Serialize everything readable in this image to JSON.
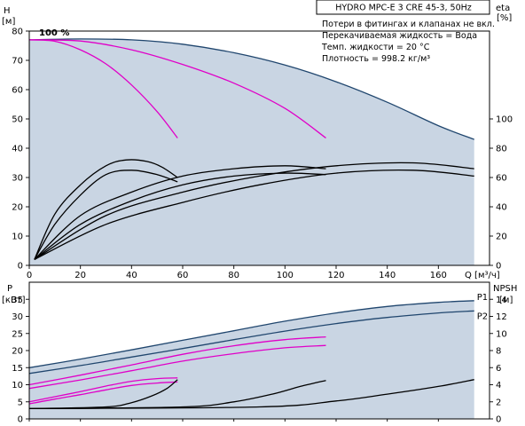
{
  "chart_data": [
    {
      "type": "line",
      "name_box": "HYDRO MPC-E 3 CRE 45-3, 50Hz",
      "title_lines": [
        "Потери в фитингах и клапанах не вкл.",
        "Перекачиваемая жидкость = Вода",
        "Темп. жидкости = 20 °C",
        "Плотность = 998.2 кг/м³"
      ],
      "xlabel": "Q [м³/ч]",
      "ylabel_left": "H [м]",
      "ylabel_right": "eta [%]",
      "xlim": [
        0,
        180
      ],
      "ylim_left": [
        0,
        80
      ],
      "ylim_right": [
        0,
        160
      ],
      "x_ticks": [
        0,
        20,
        40,
        60,
        80,
        100,
        120,
        140,
        160
      ],
      "y_ticks_left": [
        0,
        10,
        20,
        30,
        40,
        50,
        60,
        70,
        80
      ],
      "y_ticks_right": [
        0,
        20,
        40,
        60,
        80,
        100
      ],
      "annotation": "100 %",
      "colors": {
        "envelope": "#c9d5e3",
        "head_max": "#20466e",
        "head_reduced": "#e000c8",
        "eta": "#000000"
      },
      "envelope_upper": {
        "x": [
          0,
          5,
          20,
          40,
          60,
          80,
          100,
          120,
          140,
          160,
          174
        ],
        "y": [
          77,
          77.3,
          77.3,
          77,
          75.5,
          72.6,
          68.4,
          62.7,
          55.7,
          47.7,
          43
        ]
      },
      "envelope_lower": {
        "x": [
          174,
          140,
          120,
          100,
          80,
          60,
          45,
          30,
          15,
          5,
          0
        ],
        "y": [
          0,
          0,
          0,
          0,
          0,
          0,
          0,
          0,
          0,
          0,
          0
        ]
      },
      "series": [
        {
          "role": "head_max",
          "x": [
            0,
            20,
            40,
            60,
            80,
            100,
            120,
            140,
            160,
            174
          ],
          "y": [
            77,
            77.3,
            77,
            75.5,
            72.6,
            68.4,
            62.7,
            55.7,
            47.7,
            43
          ]
        },
        {
          "role": "head_reduced",
          "x": [
            0,
            10,
            20,
            30,
            40,
            50,
            58
          ],
          "y": [
            77,
            76.5,
            73.6,
            68.8,
            61.6,
            52.5,
            43.5
          ]
        },
        {
          "role": "head_reduced",
          "x": [
            0,
            20,
            40,
            60,
            80,
            100,
            116
          ],
          "y": [
            77,
            76.6,
            73.6,
            68.6,
            62.2,
            53.6,
            43.5
          ]
        },
        {
          "role": "eta",
          "x": [
            2,
            10,
            20,
            30,
            40,
            50,
            58
          ],
          "y_right": [
            4,
            28,
            48,
            62,
            65,
            62,
            57
          ]
        },
        {
          "role": "eta",
          "x": [
            2,
            10,
            20,
            30,
            38,
            46,
            52,
            58
          ],
          "y_right": [
            4,
            35,
            55,
            68,
            72,
            71,
            67,
            60
          ]
        },
        {
          "role": "eta",
          "x": [
            2,
            20,
            40,
            60,
            80,
            100,
            116
          ],
          "y_right": [
            4,
            28,
            44,
            55,
            61,
            63,
            62
          ]
        },
        {
          "role": "eta",
          "x": [
            2,
            20,
            40,
            60,
            80,
            100,
            116
          ],
          "y_right": [
            4,
            34,
            50,
            61,
            66,
            68,
            66
          ]
        },
        {
          "role": "eta",
          "x": [
            2,
            30,
            60,
            90,
            120,
            150,
            174
          ],
          "y_right": [
            4,
            28,
            43,
            55,
            63,
            65,
            61
          ]
        },
        {
          "role": "eta",
          "x": [
            2,
            30,
            60,
            90,
            120,
            150,
            174
          ],
          "y_right": [
            4,
            34,
            50,
            61,
            68,
            70,
            66
          ]
        }
      ]
    },
    {
      "type": "line",
      "ylabel_left": "P [кВт]",
      "ylabel_right": "NPSH [м]",
      "xlim": [
        0,
        180
      ],
      "ylim_left": [
        0,
        40
      ],
      "ylim_right": [
        0,
        16
      ],
      "y_ticks_left": [
        0,
        5,
        10,
        15,
        20,
        25,
        30,
        35
      ],
      "y_ticks_right": [
        0,
        2,
        4,
        6,
        8,
        10,
        12,
        14
      ],
      "curve_labels": [
        "P1",
        "P2"
      ],
      "colors": {
        "envelope": "#c9d5e3",
        "power_max": "#20466e",
        "power_reduced": "#e000c8",
        "npsh": "#000000"
      },
      "envelope_upper": {
        "x": [
          0,
          20,
          40,
          60,
          80,
          100,
          120,
          140,
          160,
          174
        ],
        "y": [
          15,
          17.5,
          20.2,
          23,
          25.8,
          28.6,
          31,
          32.9,
          34.1,
          34.6
        ]
      },
      "envelope_lower": {
        "x": [
          174,
          120,
          90,
          60,
          30,
          0
        ],
        "y": [
          0,
          0,
          0,
          0,
          0,
          0
        ]
      },
      "series": [
        {
          "role": "power_max",
          "name": "P1",
          "x": [
            0,
            20,
            40,
            60,
            80,
            100,
            120,
            140,
            160,
            174
          ],
          "y": [
            15,
            17.5,
            20.2,
            23,
            25.8,
            28.6,
            31,
            32.9,
            34.1,
            34.6
          ]
        },
        {
          "role": "power_max",
          "name": "P2",
          "x": [
            0,
            20,
            40,
            60,
            80,
            100,
            120,
            140,
            160,
            174
          ],
          "y": [
            13.3,
            15.6,
            18.1,
            20.6,
            23.2,
            25.7,
            27.9,
            29.7,
            31,
            31.6
          ]
        },
        {
          "role": "power_reduced",
          "x": [
            0,
            20,
            40,
            60,
            80,
            100,
            116
          ],
          "y": [
            10,
            12.8,
            15.8,
            18.9,
            21.4,
            23.2,
            24
          ]
        },
        {
          "role": "power_reduced",
          "x": [
            0,
            20,
            40,
            60,
            80,
            100,
            116
          ],
          "y": [
            8.9,
            11.4,
            14.1,
            16.9,
            19.1,
            20.8,
            21.5
          ]
        },
        {
          "role": "power_reduced",
          "x": [
            0,
            10,
            20,
            30,
            40,
            50,
            58
          ],
          "y": [
            5,
            6.5,
            8,
            9.6,
            11,
            11.8,
            12
          ]
        },
        {
          "role": "power_reduced",
          "x": [
            0,
            10,
            20,
            30,
            40,
            50,
            58
          ],
          "y": [
            4.4,
            5.8,
            7.1,
            8.5,
            9.8,
            10.5,
            10.8
          ]
        },
        {
          "role": "npsh",
          "x": [
            0,
            30,
            40,
            48,
            54,
            58
          ],
          "y_right": [
            1.2,
            1.4,
            1.9,
            2.7,
            3.6,
            4.6
          ]
        },
        {
          "role": "npsh",
          "x": [
            0,
            60,
            80,
            95,
            106,
            116
          ],
          "y_right": [
            1.2,
            1.4,
            2.0,
            2.9,
            3.8,
            4.5
          ]
        },
        {
          "role": "npsh",
          "x": [
            0,
            90,
            120,
            140,
            160,
            174
          ],
          "y_right": [
            1.2,
            1.4,
            2.1,
            2.9,
            3.8,
            4.6
          ]
        }
      ]
    }
  ]
}
